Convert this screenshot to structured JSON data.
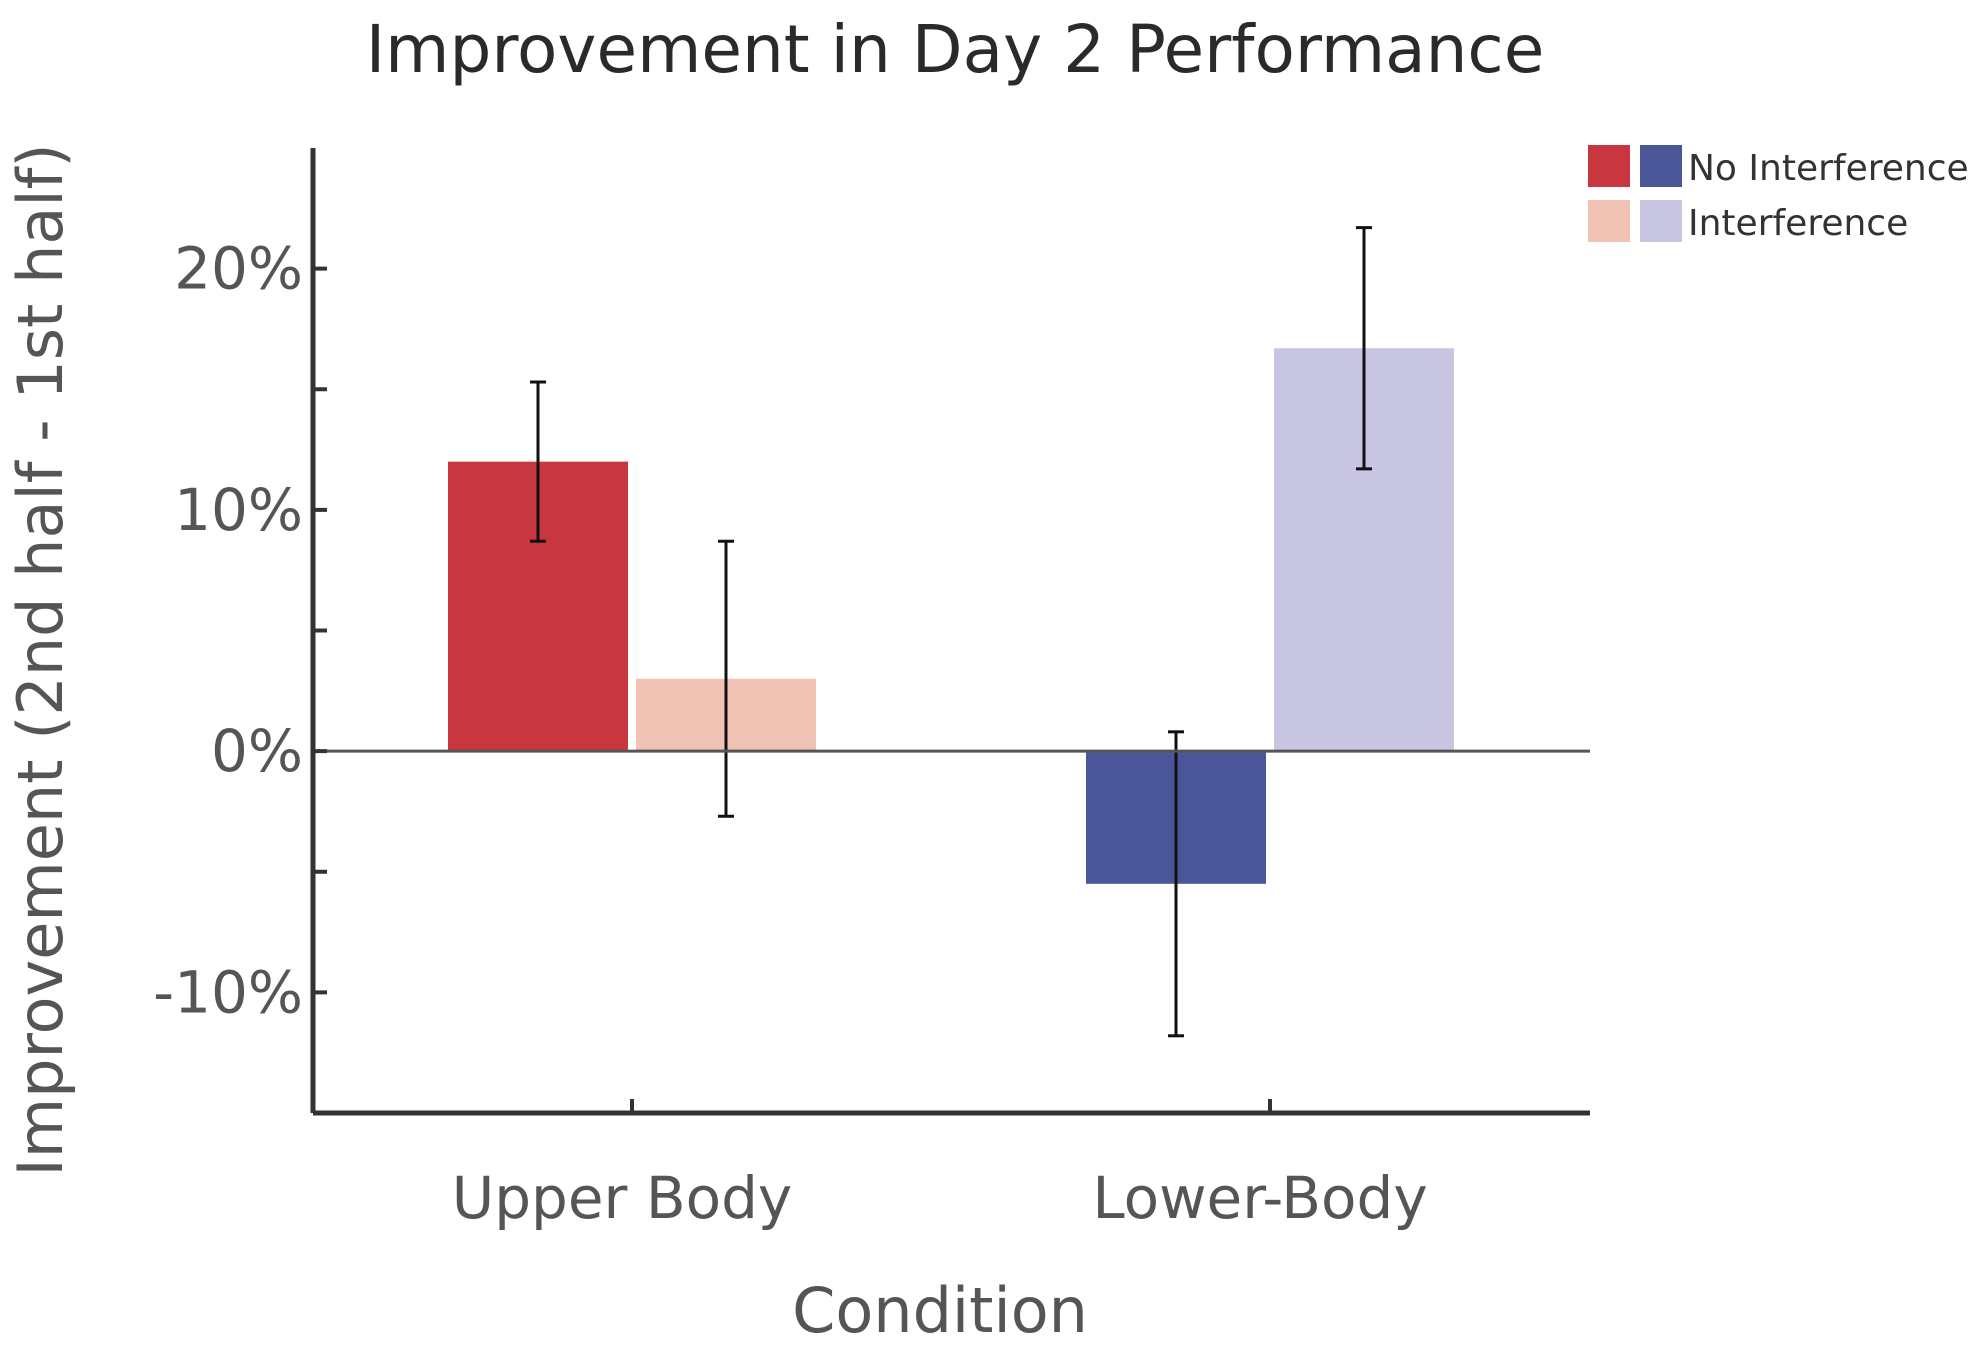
{
  "chart_data": {
    "type": "bar",
    "title": "Improvement in Day 2 Performance",
    "xlabel": "Condition",
    "ylabel": "Improvement (2nd half - 1st half)",
    "ylim": [
      -15,
      25
    ],
    "yticks": [
      -10,
      0,
      10,
      20
    ],
    "ytick_labels": [
      "-10%",
      "0%",
      "10%",
      "20%"
    ],
    "categories": [
      "Upper Body",
      "Lower-Body"
    ],
    "series": [
      {
        "name": "No Interference",
        "values": [
          12,
          -5.5
        ],
        "errors": [
          3.3,
          6.3
        ],
        "colors": [
          "#c8373f",
          "#4b5699"
        ]
      },
      {
        "name": "Interference",
        "values": [
          3,
          16.7
        ],
        "errors": [
          5.7,
          5.0
        ],
        "colors": [
          "#efc2b3",
          "#c7c5e2"
        ]
      }
    ],
    "legend": {
      "position": "top-right",
      "entries": [
        {
          "label": "No Interference",
          "colors": [
            "#c8373f",
            "#4b5699"
          ]
        },
        {
          "label": "Interference",
          "colors": [
            "#efc2b3",
            "#c7c5e2"
          ]
        }
      ]
    },
    "grid": false
  }
}
